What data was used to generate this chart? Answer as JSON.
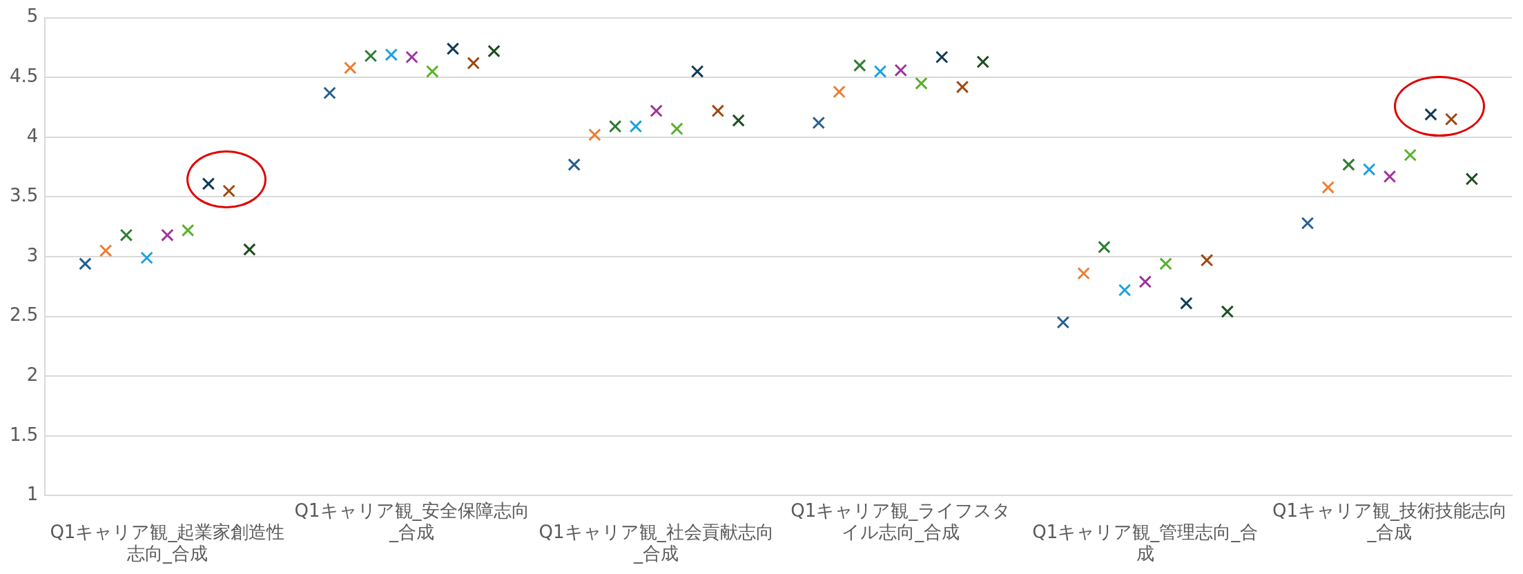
{
  "chart_data": {
    "type": "scatter",
    "categories": [
      "Q1キャリア観_起業家創造性志向_合成",
      "Q1キャリア観_安全保障志向_合成",
      "Q1キャリア観_社会貢献志向_合成",
      "Q1キャリア観_ライフスタイル志向_合成",
      "Q1キャリア観_管理志向_合成",
      "Q1キャリア観_技術技能志向_合成"
    ],
    "series": [
      {
        "color": "#255e91",
        "values": [
          2.94,
          4.37,
          3.77,
          4.12,
          2.45,
          3.28
        ]
      },
      {
        "color": "#ed7d31",
        "values": [
          3.05,
          4.58,
          4.02,
          4.38,
          2.86,
          3.58
        ]
      },
      {
        "color": "#2e7d32",
        "values": [
          3.18,
          4.68,
          4.09,
          4.6,
          3.08,
          3.77
        ]
      },
      {
        "color": "#1ba1e2",
        "values": [
          2.99,
          4.69,
          4.09,
          4.55,
          2.72,
          3.73
        ]
      },
      {
        "color": "#a0339f",
        "values": [
          3.18,
          4.67,
          4.22,
          4.56,
          2.79,
          3.67
        ]
      },
      {
        "color": "#5bb02f",
        "values": [
          3.22,
          4.55,
          4.07,
          4.45,
          2.94,
          3.85
        ]
      },
      {
        "color": "#0f3b57",
        "values": [
          3.61,
          4.74,
          4.55,
          4.67,
          2.61,
          4.19
        ]
      },
      {
        "color": "#9e480e",
        "values": [
          3.55,
          4.62,
          4.22,
          4.42,
          2.97,
          4.15
        ]
      },
      {
        "color": "#1e4d1e",
        "values": [
          3.06,
          4.72,
          4.14,
          4.63,
          2.54,
          3.65
        ]
      }
    ],
    "ylim": [
      1,
      5
    ],
    "yticks": [
      1,
      1.5,
      2,
      2.5,
      3,
      3.5,
      4,
      4.5,
      5
    ],
    "grid": true,
    "legend": false,
    "marker": "cross"
  }
}
